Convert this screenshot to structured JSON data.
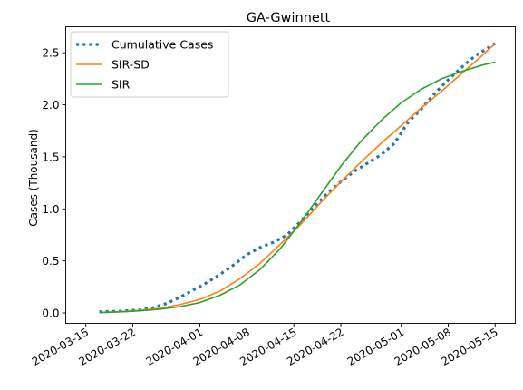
{
  "chart_data": {
    "type": "line",
    "title": "GA-Gwinnett",
    "xlabel": "",
    "ylabel": "Cases (Thousand)",
    "xlim": [
      "2020-03-12",
      "2020-05-18"
    ],
    "ylim": [
      -0.1,
      2.75
    ],
    "x_ticks": [
      "2020-03-15",
      "2020-03-22",
      "2020-04-01",
      "2020-04-08",
      "2020-04-15",
      "2020-04-22",
      "2020-05-01",
      "2020-05-08",
      "2020-05-15"
    ],
    "y_ticks": [
      "0.0",
      "0.5",
      "1.0",
      "1.5",
      "2.0",
      "2.5"
    ],
    "legend_position": "top-left",
    "grid": false,
    "series": [
      {
        "name": "Cumulative Cases",
        "style": "dotted",
        "color": "#1f77b4",
        "x": [
          "2020-03-17",
          "2020-03-19",
          "2020-03-21",
          "2020-03-23",
          "2020-03-25",
          "2020-03-27",
          "2020-03-29",
          "2020-03-31",
          "2020-04-02",
          "2020-04-04",
          "2020-04-06",
          "2020-04-08",
          "2020-04-10",
          "2020-04-12",
          "2020-04-14",
          "2020-04-16",
          "2020-04-18",
          "2020-04-20",
          "2020-04-22",
          "2020-04-24",
          "2020-04-26",
          "2020-04-28",
          "2020-04-30",
          "2020-05-02",
          "2020-05-04",
          "2020-05-06",
          "2020-05-08",
          "2020-05-10",
          "2020-05-12",
          "2020-05-14",
          "2020-05-15"
        ],
        "y": [
          0.01,
          0.015,
          0.02,
          0.03,
          0.05,
          0.09,
          0.15,
          0.22,
          0.29,
          0.37,
          0.46,
          0.56,
          0.63,
          0.68,
          0.75,
          0.88,
          1.02,
          1.15,
          1.26,
          1.36,
          1.44,
          1.52,
          1.63,
          1.83,
          1.96,
          2.11,
          2.24,
          2.36,
          2.47,
          2.55,
          2.59
        ]
      },
      {
        "name": "SIR-SD",
        "style": "solid",
        "color": "#ff7f0e",
        "x": [
          "2020-03-17",
          "2020-03-20",
          "2020-03-23",
          "2020-03-26",
          "2020-03-29",
          "2020-04-01",
          "2020-04-04",
          "2020-04-07",
          "2020-04-10",
          "2020-04-13",
          "2020-04-16",
          "2020-04-19",
          "2020-04-22",
          "2020-04-25",
          "2020-04-28",
          "2020-05-01",
          "2020-05-04",
          "2020-05-07",
          "2020-05-10",
          "2020-05-13",
          "2020-05-15"
        ],
        "y": [
          0.005,
          0.012,
          0.025,
          0.045,
          0.08,
          0.13,
          0.21,
          0.33,
          0.48,
          0.66,
          0.85,
          1.06,
          1.26,
          1.45,
          1.63,
          1.8,
          1.97,
          2.13,
          2.3,
          2.47,
          2.59
        ]
      },
      {
        "name": "SIR",
        "style": "solid",
        "color": "#2ca02c",
        "x": [
          "2020-03-17",
          "2020-03-20",
          "2020-03-23",
          "2020-03-26",
          "2020-03-29",
          "2020-04-01",
          "2020-04-04",
          "2020-04-07",
          "2020-04-10",
          "2020-04-13",
          "2020-04-16",
          "2020-04-19",
          "2020-04-22",
          "2020-04-25",
          "2020-04-28",
          "2020-05-01",
          "2020-05-04",
          "2020-05-07",
          "2020-05-10",
          "2020-05-13",
          "2020-05-15"
        ],
        "y": [
          0.004,
          0.01,
          0.02,
          0.035,
          0.06,
          0.1,
          0.17,
          0.27,
          0.42,
          0.62,
          0.87,
          1.14,
          1.41,
          1.65,
          1.85,
          2.02,
          2.15,
          2.25,
          2.32,
          2.38,
          2.41
        ]
      }
    ]
  }
}
